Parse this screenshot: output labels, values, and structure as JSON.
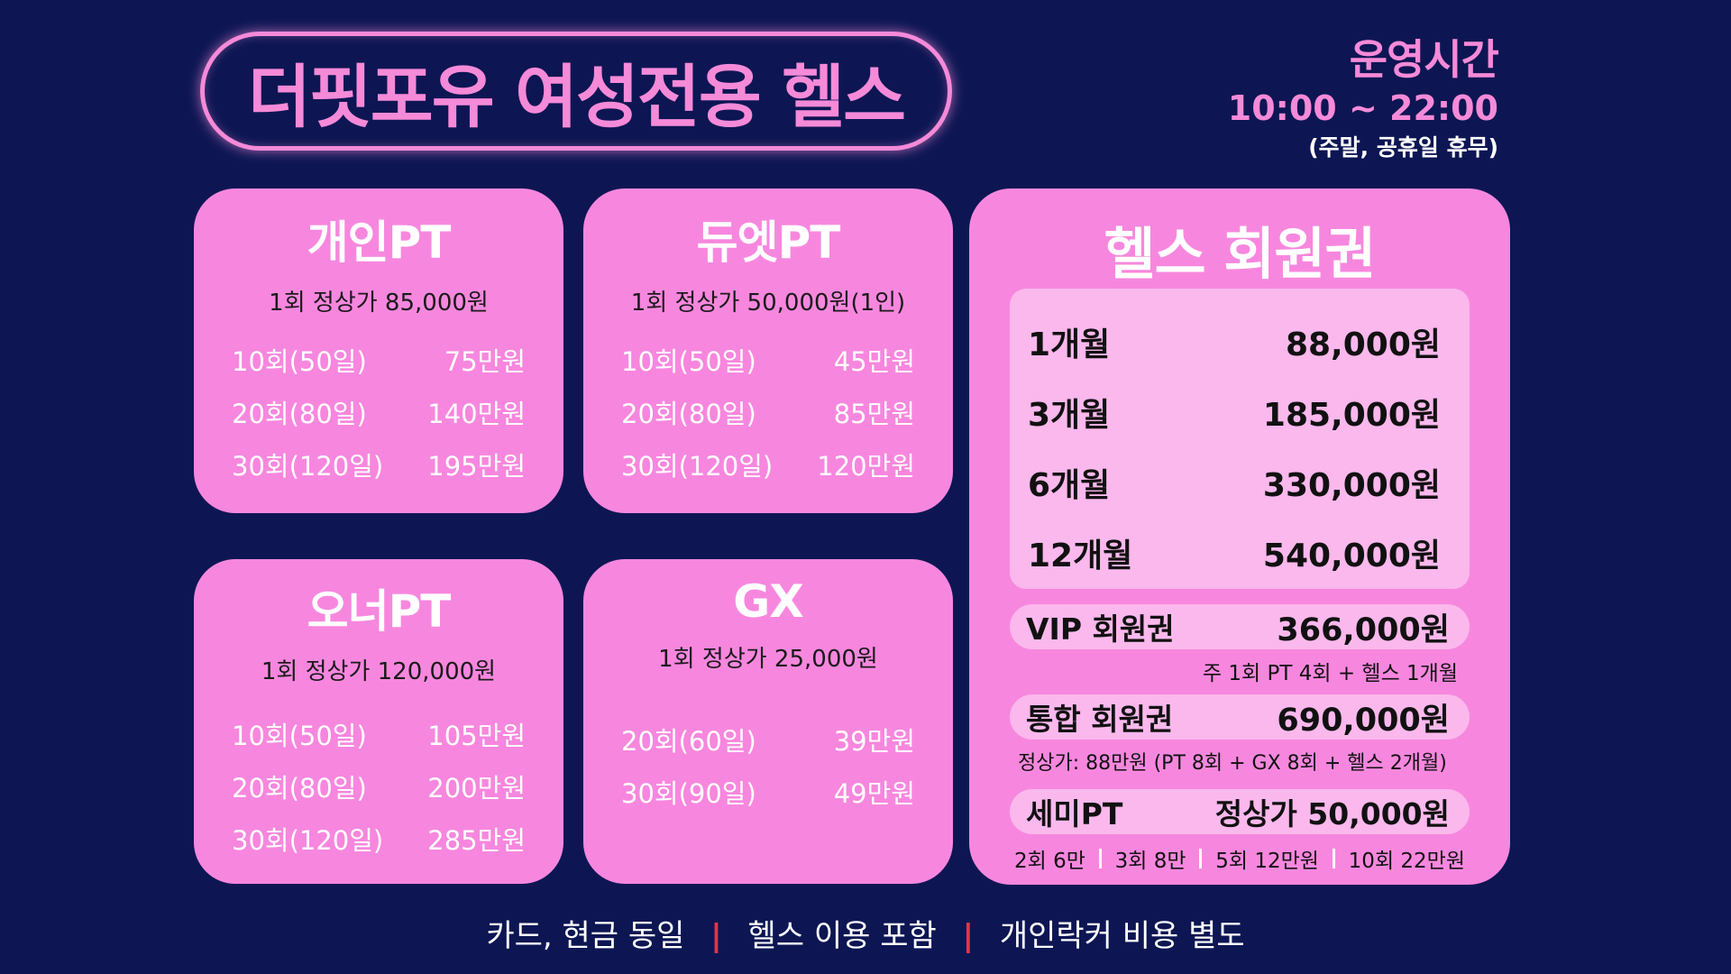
{
  "header": {
    "title": "더핏포유 여성전용 헬스",
    "hours_title": "운영시간",
    "hours_time": "10:00 ~ 22:00",
    "hours_note": "(주말, 공휴일 휴무)"
  },
  "personal_pt": {
    "title": "개인PT",
    "base": "1회 정상가 85,000원",
    "rows": [
      {
        "sessions": "10회(50일)",
        "price": "75만원"
      },
      {
        "sessions": "20회(80일)",
        "price": "140만원"
      },
      {
        "sessions": "30회(120일)",
        "price": "195만원"
      }
    ]
  },
  "duet_pt": {
    "title": "듀엣PT",
    "base": "1회 정상가 50,000원(1인)",
    "rows": [
      {
        "sessions": "10회(50일)",
        "price": "45만원"
      },
      {
        "sessions": "20회(80일)",
        "price": "85만원"
      },
      {
        "sessions": "30회(120일)",
        "price": "120만원"
      }
    ]
  },
  "owner_pt": {
    "title": "오너PT",
    "base": "1회 정상가 120,000원",
    "rows": [
      {
        "sessions": "10회(50일)",
        "price": "105만원"
      },
      {
        "sessions": "20회(80일)",
        "price": "200만원"
      },
      {
        "sessions": "30회(120일)",
        "price": "285만원"
      }
    ]
  },
  "gx": {
    "title": "GX",
    "base": "1회 정상가 25,000원",
    "rows": [
      {
        "sessions": "20회(60일)",
        "price": "39만원"
      },
      {
        "sessions": "30회(90일)",
        "price": "49만원"
      }
    ]
  },
  "membership": {
    "title": "헬스 회원권",
    "rows": [
      {
        "period": "1개월",
        "price": "88,000원"
      },
      {
        "period": "3개월",
        "price": "185,000원"
      },
      {
        "period": "6개월",
        "price": "330,000원"
      },
      {
        "period": "12개월",
        "price": "540,000원"
      }
    ],
    "vip": {
      "label": "VIP 회원권",
      "price": "366,000원",
      "note": "주 1회 PT 4회 + 헬스 1개월"
    },
    "combined": {
      "label": "통합 회원권",
      "price": "690,000원",
      "note": "정상가: 88만원 (PT 8회 + GX 8회 + 헬스 2개월)"
    },
    "semi": {
      "label": "세미PT",
      "price": "정상가 50,000원",
      "options": [
        "2회 6만",
        "3회 8만",
        "5회 12만원",
        "10회 22만원"
      ]
    }
  },
  "footer": {
    "items": [
      "카드, 현금 동일",
      "헬스 이용 포함",
      "개인락커 비용 별도"
    ],
    "separator": "|"
  },
  "colors": {
    "background": "#0d1653",
    "accent": "#f58ad8",
    "card": "#f787de",
    "inner": "#fab8ec",
    "separator": "#e8334a"
  }
}
